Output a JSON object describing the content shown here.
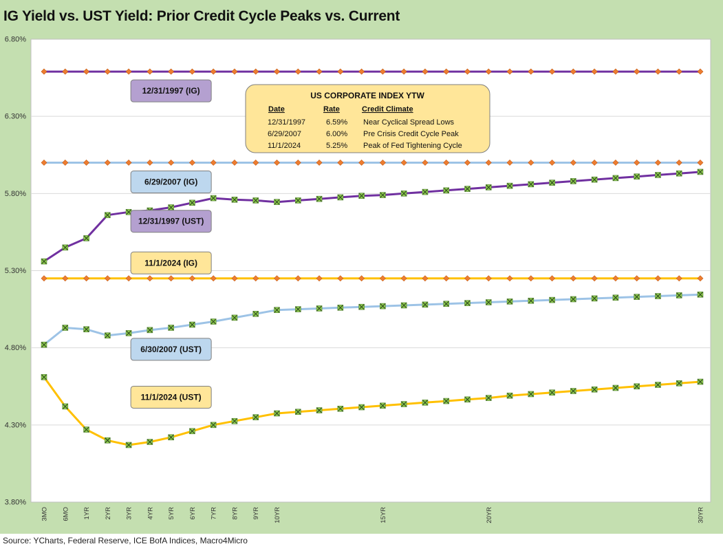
{
  "title": "IG Yield vs. UST Yield: Prior Credit Cycle Peaks vs. Current",
  "source": "Source: YCharts, Federal Reserve, ICE BofA Indices, Macro4Micro",
  "chart_data": {
    "type": "line",
    "ylim": [
      3.8,
      6.8
    ],
    "y_ticks": [
      "3.80%",
      "4.30%",
      "4.80%",
      "5.30%",
      "5.80%",
      "6.30%",
      "6.80%"
    ],
    "x": [
      "3MO",
      "6MO",
      "1YR",
      "2YR",
      "3YR",
      "4YR",
      "5YR",
      "6YR",
      "7YR",
      "8YR",
      "9YR",
      "10YR",
      "11YR",
      "12YR",
      "13YR",
      "14YR",
      "15YR",
      "16YR",
      "17YR",
      "18YR",
      "19YR",
      "20YR",
      "21YR",
      "22YR",
      "23YR",
      "24YR",
      "25YR",
      "26YR",
      "27YR",
      "28YR",
      "29YR",
      "30YR"
    ],
    "x_tick_labels": [
      "3MO",
      "6MO",
      "1YR",
      "2YR",
      "3YR",
      "4YR",
      "5YR",
      "6YR",
      "7YR",
      "8YR",
      "9YR",
      "10YR",
      "",
      "",
      "",
      "",
      "15YR",
      "",
      "",
      "",
      "",
      "20YR",
      "",
      "",
      "",
      "",
      "",
      "",
      "",
      "",
      "",
      "30YR"
    ],
    "grid": "horizontal",
    "series": [
      {
        "name": "12/31/1997 (IG)",
        "color": "#7030a0",
        "marker": "diamond",
        "values": [
          6.59,
          6.59,
          6.59,
          6.59,
          6.59,
          6.59,
          6.59,
          6.59,
          6.59,
          6.59,
          6.59,
          6.59,
          6.59,
          6.59,
          6.59,
          6.59,
          6.59,
          6.59,
          6.59,
          6.59,
          6.59,
          6.59,
          6.59,
          6.59,
          6.59,
          6.59,
          6.59,
          6.59,
          6.59,
          6.59,
          6.59,
          6.59
        ]
      },
      {
        "name": "6/29/2007 (IG)",
        "color": "#9dc3e6",
        "marker": "diamond",
        "values": [
          6.0,
          6.0,
          6.0,
          6.0,
          6.0,
          6.0,
          6.0,
          6.0,
          6.0,
          6.0,
          6.0,
          6.0,
          6.0,
          6.0,
          6.0,
          6.0,
          6.0,
          6.0,
          6.0,
          6.0,
          6.0,
          6.0,
          6.0,
          6.0,
          6.0,
          6.0,
          6.0,
          6.0,
          6.0,
          6.0,
          6.0,
          6.0
        ]
      },
      {
        "name": "11/1/2024 (IG)",
        "color": "#ffc000",
        "marker": "diamond",
        "values": [
          5.25,
          5.25,
          5.25,
          5.25,
          5.25,
          5.25,
          5.25,
          5.25,
          5.25,
          5.25,
          5.25,
          5.25,
          5.25,
          5.25,
          5.25,
          5.25,
          5.25,
          5.25,
          5.25,
          5.25,
          5.25,
          5.25,
          5.25,
          5.25,
          5.25,
          5.25,
          5.25,
          5.25,
          5.25,
          5.25,
          5.25,
          5.25
        ]
      },
      {
        "name": "12/31/1997 (UST)",
        "color": "#7030a0",
        "marker": "x",
        "values": [
          5.36,
          5.45,
          5.51,
          5.66,
          5.68,
          5.69,
          5.71,
          5.74,
          5.77,
          5.76,
          5.755,
          5.745,
          5.755,
          5.765,
          5.775,
          5.785,
          5.79,
          5.8,
          5.81,
          5.82,
          5.83,
          5.84,
          5.85,
          5.86,
          5.87,
          5.88,
          5.89,
          5.9,
          5.91,
          5.92,
          5.93,
          5.94
        ]
      },
      {
        "name": "6/30/2007 (UST)",
        "color": "#9dc3e6",
        "marker": "x",
        "values": [
          4.82,
          4.93,
          4.92,
          4.88,
          4.895,
          4.915,
          4.93,
          4.95,
          4.97,
          4.995,
          5.02,
          5.045,
          5.05,
          5.055,
          5.06,
          5.065,
          5.07,
          5.075,
          5.08,
          5.085,
          5.09,
          5.095,
          5.1,
          5.105,
          5.11,
          5.115,
          5.12,
          5.125,
          5.13,
          5.135,
          5.14,
          5.145
        ]
      },
      {
        "name": "11/1/2024 (UST)",
        "color": "#ffc000",
        "marker": "x",
        "values": [
          4.61,
          4.42,
          4.27,
          4.2,
          4.17,
          4.19,
          4.22,
          4.26,
          4.3,
          4.325,
          4.35,
          4.375,
          4.385,
          4.395,
          4.405,
          4.415,
          4.425,
          4.435,
          4.445,
          4.455,
          4.465,
          4.475,
          4.49,
          4.5,
          4.51,
          4.52,
          4.53,
          4.54,
          4.55,
          4.56,
          4.57,
          4.58
        ]
      }
    ],
    "annotations": [
      {
        "text": "12/31/1997 (IG)",
        "fill": "#b4a0d0",
        "at_x": "5YR",
        "at_y": 6.465
      },
      {
        "text": "6/29/2007 (IG)",
        "fill": "#bdd7ee",
        "at_x": "5YR",
        "at_y": 5.875
      },
      {
        "text": "12/31/1997 (UST)",
        "fill": "#b4a0d0",
        "at_x": "5YR",
        "at_y": 5.62
      },
      {
        "text": "11/1/2024 (IG)",
        "fill": "#ffe699",
        "at_x": "5YR",
        "at_y": 5.35
      },
      {
        "text": "6/30/2007 (UST)",
        "fill": "#bdd7ee",
        "at_x": "5YR",
        "at_y": 4.79
      },
      {
        "text": "11/1/2024 (UST)",
        "fill": "#ffe699",
        "at_x": "5YR",
        "at_y": 4.48
      }
    ],
    "info_table": {
      "title": "US CORPORATE  INDEX YTW",
      "headers": [
        "Date",
        "Rate",
        "Credit Climate"
      ],
      "rows": [
        [
          "12/31/1997",
          "6.59%",
          "Near Cyclical Spread Lows"
        ],
        [
          "6/29/2007",
          "6.00%",
          "Pre Crisis Credit Cycle Peak"
        ],
        [
          "11/1/2024",
          "5.25%",
          "Peak of Fed Tightening Cycle"
        ]
      ]
    }
  }
}
